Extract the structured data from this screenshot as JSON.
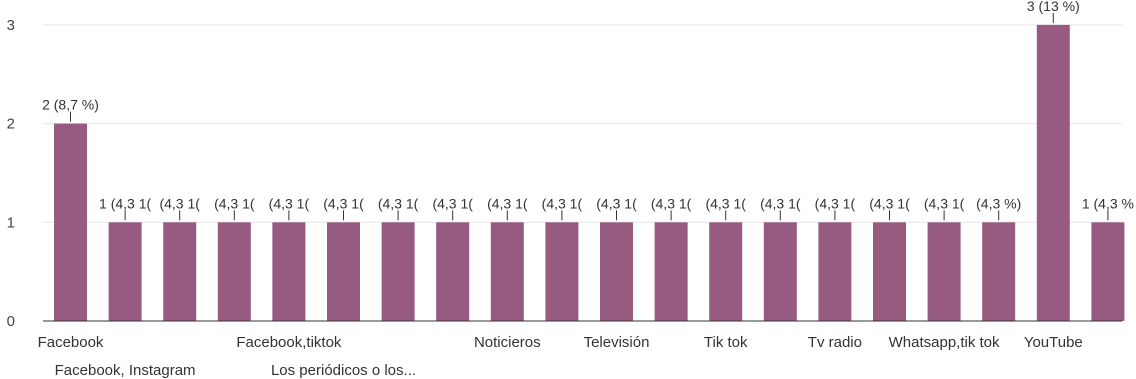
{
  "colors": {
    "bar": "#975A81",
    "grid": "#E6E6E6",
    "text": "#333333",
    "background": "#FFFFFF"
  },
  "chart_data": {
    "type": "bar",
    "title": "",
    "xlabel": "",
    "ylabel": "",
    "ylim": [
      0,
      3
    ],
    "yticks": [
      "0",
      "1",
      "2",
      "3"
    ],
    "grid": true,
    "categories": [
      "Facebook",
      "Facebook, Instagram",
      "",
      "",
      "Facebook,tiktok",
      "Los periódicos o los...",
      "",
      "",
      "Noticieros",
      "",
      "Televisión",
      "",
      "Tik tok",
      "",
      "Tv radio",
      "",
      "Whatsapp,tik tok",
      "",
      "YouTube",
      ""
    ],
    "values": [
      2,
      1,
      1,
      1,
      1,
      1,
      1,
      1,
      1,
      1,
      1,
      1,
      1,
      1,
      1,
      1,
      1,
      1,
      3,
      1
    ],
    "data_labels": [
      "2 (8,7 %)",
      "1 (4,3 1(",
      "(4,3 1(",
      "(4,3 1(",
      "(4,3 1(",
      "(4,3 1(",
      "(4,3 1(",
      "(4,3 1(",
      "(4,3 1(",
      "(4,3 1(",
      "(4,3 1(",
      "(4,3 1(",
      "(4,3 1(",
      "(4,3 1(",
      "(4,3 1(",
      "(4,3 1(",
      "(4,3 1(",
      "(4,3 %)",
      "3 (13 %)",
      "1 (4,3 %"
    ]
  }
}
